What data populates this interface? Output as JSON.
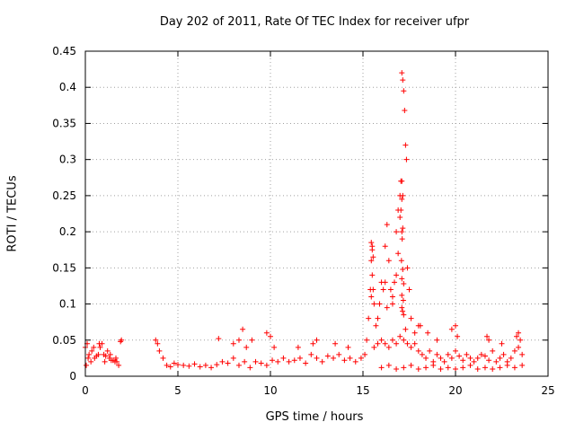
{
  "chart_data": {
    "type": "scatter",
    "title": "Day 202 of 2011, Rate Of TEC Index for receiver ufpr",
    "xlabel": "GPS time / hours",
    "ylabel": "ROTI / TECUs",
    "xlim": [
      0,
      25
    ],
    "ylim": [
      0,
      0.45
    ],
    "xticks": [
      "0",
      "5",
      "10",
      "15",
      "20",
      "25"
    ],
    "yticks": [
      "0",
      "0.05",
      "0.1",
      "0.15",
      "0.2",
      "0.25",
      "0.3",
      "0.35",
      "0.4",
      "0.45"
    ],
    "grid": true,
    "marker": "+",
    "color": "#ff0000",
    "series": [
      {
        "x": [
          0.0,
          0.1,
          0.2,
          0.3,
          0.5,
          0.7,
          0.9,
          1.1,
          1.3,
          1.5,
          1.7,
          1.9,
          0.05,
          0.35,
          0.6,
          0.8,
          1.0,
          1.2,
          1.4,
          1.6,
          1.8,
          0.15,
          0.45,
          0.75,
          1.05,
          1.35,
          1.65,
          1.95,
          3.8,
          3.9,
          4.0,
          4.2,
          4.4,
          4.6,
          4.8,
          5.0,
          5.3,
          5.6,
          5.9,
          6.2,
          6.5,
          6.8,
          7.1,
          7.4,
          7.7,
          8.0,
          8.3,
          8.6,
          8.9,
          9.2,
          9.5,
          9.8,
          10.1,
          10.4,
          10.7,
          11.0,
          11.3,
          11.6,
          11.9,
          12.2,
          12.5,
          12.8,
          13.1,
          13.4,
          13.7,
          14.0,
          14.3,
          14.6,
          14.9,
          15.1,
          7.2,
          8.0,
          8.3,
          8.5,
          8.7,
          9.0,
          9.8,
          10.0,
          10.2,
          11.5,
          12.3,
          12.5,
          13.5,
          14.2,
          15.2,
          15.3,
          15.4,
          15.45,
          15.5,
          15.55,
          15.6,
          15.7,
          15.8,
          15.9,
          16.0,
          16.1,
          16.2,
          16.3,
          16.4,
          16.5,
          16.6,
          16.7,
          16.8,
          16.9,
          17.0,
          17.05,
          17.1,
          17.15,
          17.2,
          17.25,
          17.3,
          17.35,
          17.4,
          17.5,
          17.6,
          17.8,
          18.0,
          15.45,
          15.5,
          15.55,
          15.5,
          15.45,
          16.2,
          16.3,
          16.6,
          16.8,
          16.9,
          17.0,
          17.05,
          17.1,
          17.15,
          17.1,
          17.15,
          17.1,
          17.12,
          17.08,
          17.15,
          17.1,
          17.2,
          17.1,
          17.18,
          17.1,
          17.14,
          17.2,
          17.3,
          15.6,
          15.8,
          16.0,
          16.2,
          16.4,
          16.6,
          16.8,
          17.0,
          17.2,
          17.4,
          17.6,
          17.8,
          18.0,
          18.2,
          18.4,
          18.6,
          18.8,
          19.0,
          19.2,
          19.4,
          19.6,
          19.8,
          20.0,
          20.2,
          20.4,
          20.6,
          20.8,
          21.0,
          21.2,
          21.4,
          21.6,
          21.8,
          22.0,
          22.2,
          22.4,
          22.6,
          22.8,
          23.0,
          23.2,
          23.4,
          23.6,
          18.1,
          18.5,
          19.0,
          19.8,
          20.0,
          20.1,
          21.7,
          21.8,
          22.5,
          23.3,
          23.4,
          23.5,
          16.0,
          16.4,
          16.8,
          17.2,
          17.6,
          18.0,
          18.4,
          18.8,
          19.2,
          19.6,
          20.0,
          20.4,
          20.8,
          21.2,
          21.6,
          22.0,
          22.4,
          22.8,
          23.2,
          23.6
        ],
        "y": [
          0.04,
          0.045,
          0.03,
          0.02,
          0.025,
          0.03,
          0.045,
          0.028,
          0.025,
          0.022,
          0.02,
          0.048,
          0.015,
          0.035,
          0.028,
          0.04,
          0.03,
          0.035,
          0.022,
          0.02,
          0.015,
          0.025,
          0.04,
          0.045,
          0.02,
          0.03,
          0.025,
          0.05,
          0.05,
          0.045,
          0.035,
          0.025,
          0.015,
          0.013,
          0.018,
          0.016,
          0.015,
          0.014,
          0.017,
          0.013,
          0.015,
          0.012,
          0.016,
          0.02,
          0.018,
          0.025,
          0.015,
          0.02,
          0.012,
          0.02,
          0.018,
          0.015,
          0.022,
          0.02,
          0.025,
          0.02,
          0.022,
          0.025,
          0.018,
          0.03,
          0.025,
          0.02,
          0.028,
          0.025,
          0.03,
          0.022,
          0.025,
          0.02,
          0.025,
          0.03,
          0.052,
          0.045,
          0.05,
          0.065,
          0.04,
          0.05,
          0.06,
          0.055,
          0.04,
          0.04,
          0.045,
          0.05,
          0.045,
          0.04,
          0.05,
          0.08,
          0.12,
          0.16,
          0.18,
          0.12,
          0.1,
          0.07,
          0.08,
          0.1,
          0.13,
          0.12,
          0.18,
          0.21,
          0.16,
          0.12,
          0.1,
          0.13,
          0.2,
          0.23,
          0.25,
          0.27,
          0.42,
          0.41,
          0.395,
          0.368,
          0.32,
          0.3,
          0.15,
          0.12,
          0.08,
          0.06,
          0.07,
          0.185,
          0.175,
          0.165,
          0.14,
          0.11,
          0.13,
          0.095,
          0.11,
          0.14,
          0.17,
          0.22,
          0.23,
          0.245,
          0.25,
          0.27,
          0.205,
          0.2,
          0.19,
          0.16,
          0.148,
          0.135,
          0.128,
          0.112,
          0.105,
          0.095,
          0.09,
          0.085,
          0.065,
          0.04,
          0.045,
          0.05,
          0.045,
          0.04,
          0.05,
          0.045,
          0.055,
          0.05,
          0.045,
          0.04,
          0.045,
          0.035,
          0.03,
          0.025,
          0.035,
          0.02,
          0.03,
          0.025,
          0.02,
          0.03,
          0.025,
          0.035,
          0.028,
          0.022,
          0.03,
          0.025,
          0.02,
          0.025,
          0.03,
          0.028,
          0.022,
          0.035,
          0.02,
          0.025,
          0.03,
          0.02,
          0.025,
          0.035,
          0.04,
          0.03,
          0.07,
          0.06,
          0.05,
          0.065,
          0.07,
          0.055,
          0.055,
          0.05,
          0.045,
          0.055,
          0.06,
          0.05,
          0.012,
          0.015,
          0.01,
          0.012,
          0.015,
          0.01,
          0.012,
          0.015,
          0.01,
          0.012,
          0.01,
          0.012,
          0.015,
          0.01,
          0.012,
          0.01,
          0.012,
          0.015,
          0.012,
          0.015
        ]
      }
    ]
  }
}
